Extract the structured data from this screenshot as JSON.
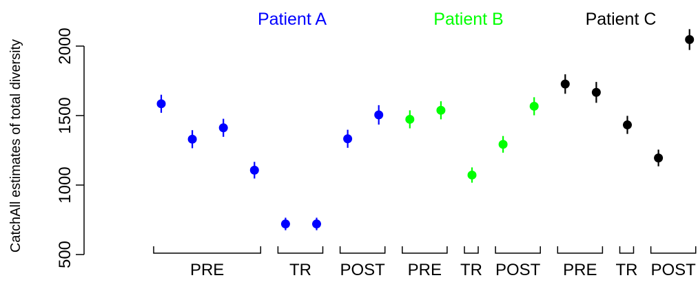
{
  "chart_data": {
    "type": "scatter",
    "title": "",
    "xlabel": "",
    "ylabel": "CatchAll estimates of total diversity",
    "ylim": [
      500,
      2000
    ],
    "yticks": [
      500,
      1000,
      1500,
      2000
    ],
    "grid": false,
    "legend": "none",
    "panels": [
      {
        "name": "Patient A",
        "color": "#0000ff",
        "groups": [
          {
            "label": "PRE",
            "points": [
              {
                "y": 1585,
                "err": 65
              },
              {
                "y": 1330,
                "err": 65
              },
              {
                "y": 1412,
                "err": 65
              },
              {
                "y": 1107,
                "err": 60
              }
            ]
          },
          {
            "label": "TR",
            "points": [
              {
                "y": 720,
                "err": 45
              },
              {
                "y": 720,
                "err": 45
              }
            ]
          },
          {
            "label": "POST",
            "points": [
              {
                "y": 1333,
                "err": 65
              },
              {
                "y": 1505,
                "err": 70
              }
            ]
          }
        ]
      },
      {
        "name": "Patient B",
        "color": "#00ff00",
        "groups": [
          {
            "label": "PRE",
            "points": [
              {
                "y": 1473,
                "err": 65
              },
              {
                "y": 1538,
                "err": 65
              }
            ]
          },
          {
            "label": "TR",
            "points": [
              {
                "y": 1072,
                "err": 55
              }
            ]
          },
          {
            "label": "POST",
            "points": [
              {
                "y": 1293,
                "err": 60
              },
              {
                "y": 1567,
                "err": 65
              }
            ]
          }
        ]
      },
      {
        "name": "Patient C",
        "color": "#000000",
        "groups": [
          {
            "label": "PRE",
            "points": [
              {
                "y": 1727,
                "err": 70
              },
              {
                "y": 1667,
                "err": 75
              }
            ]
          },
          {
            "label": "TR",
            "points": [
              {
                "y": 1433,
                "err": 65
              }
            ]
          },
          {
            "label": "POST",
            "points": [
              {
                "y": 1195,
                "err": 60
              },
              {
                "y": 2047,
                "err": 75
              }
            ]
          }
        ]
      }
    ]
  }
}
